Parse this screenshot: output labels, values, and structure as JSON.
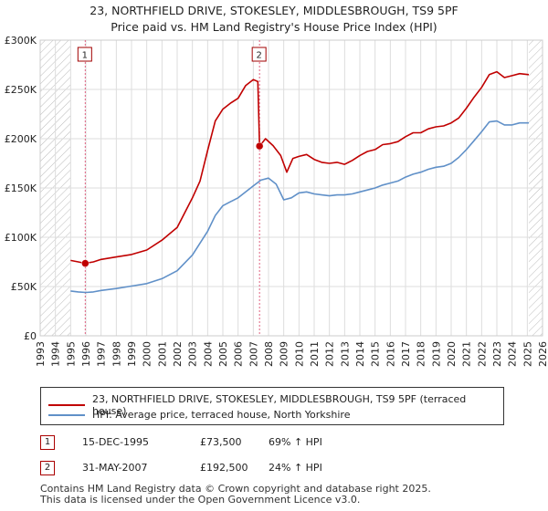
{
  "title": "23, NORTHFIELD DRIVE, STOKESLEY, MIDDLESBROUGH, TS9 5PF",
  "subtitle": "Price paid vs. HM Land Registry's House Price Index (HPI)",
  "colors": {
    "property": "#c00000",
    "hpi": "#6090c8",
    "marker": "#d04040",
    "grid": "#dddddd",
    "hatch": "#bbbbbb"
  },
  "chart_data": {
    "type": "line",
    "xlim": [
      1993,
      2026
    ],
    "ylim": [
      0,
      300000
    ],
    "y_ticks": [
      0,
      50000,
      100000,
      150000,
      200000,
      250000,
      300000
    ],
    "y_tick_labels": [
      "£0",
      "£50K",
      "£100K",
      "£150K",
      "£200K",
      "£250K",
      "£300K"
    ],
    "x_ticks": [
      1993,
      1994,
      1995,
      1996,
      1997,
      1998,
      1999,
      2000,
      2001,
      2002,
      2003,
      2004,
      2005,
      2006,
      2007,
      2008,
      2009,
      2010,
      2011,
      2012,
      2013,
      2014,
      2015,
      2016,
      2017,
      2018,
      2019,
      2020,
      2021,
      2022,
      2023,
      2024,
      2025,
      2026
    ],
    "hatch_regions": [
      [
        1993,
        1995.0
      ],
      [
        2025.1,
        2026
      ]
    ],
    "series": [
      {
        "name": "23, NORTHFIELD DRIVE, STOKESLEY, MIDDLESBROUGH, TS9 5PF (terraced house)",
        "points": [
          [
            1995.0,
            76500
          ],
          [
            1995.5,
            75000
          ],
          [
            1995.96,
            73500
          ],
          [
            1996.5,
            75000
          ],
          [
            1997,
            77500
          ],
          [
            1998,
            80000
          ],
          [
            1999,
            82500
          ],
          [
            2000,
            87000
          ],
          [
            2001,
            97000
          ],
          [
            2002,
            110000
          ],
          [
            2003,
            140000
          ],
          [
            2003.5,
            157000
          ],
          [
            2004,
            188000
          ],
          [
            2004.5,
            218000
          ],
          [
            2005,
            230000
          ],
          [
            2005.5,
            236000
          ],
          [
            2006,
            241000
          ],
          [
            2006.5,
            254000
          ],
          [
            2007.0,
            260000
          ],
          [
            2007.3,
            258000
          ],
          [
            2007.41,
            192500
          ],
          [
            2007.8,
            200000
          ],
          [
            2008.3,
            193000
          ],
          [
            2008.8,
            183000
          ],
          [
            2009.2,
            166000
          ],
          [
            2009.6,
            180000
          ],
          [
            2010,
            182000
          ],
          [
            2010.5,
            184000
          ],
          [
            2011,
            179000
          ],
          [
            2011.5,
            176000
          ],
          [
            2012,
            175000
          ],
          [
            2012.5,
            176000
          ],
          [
            2013,
            174000
          ],
          [
            2013.5,
            178000
          ],
          [
            2014,
            183000
          ],
          [
            2014.5,
            187000
          ],
          [
            2015,
            189000
          ],
          [
            2015.5,
            194000
          ],
          [
            2016,
            195000
          ],
          [
            2016.5,
            197000
          ],
          [
            2017,
            202000
          ],
          [
            2017.5,
            206000
          ],
          [
            2018,
            206000
          ],
          [
            2018.5,
            210000
          ],
          [
            2019,
            212000
          ],
          [
            2019.5,
            213000
          ],
          [
            2020,
            216000
          ],
          [
            2020.5,
            221000
          ],
          [
            2021,
            231000
          ],
          [
            2021.5,
            242000
          ],
          [
            2022,
            252000
          ],
          [
            2022.5,
            265000
          ],
          [
            2023,
            268000
          ],
          [
            2023.5,
            262000
          ],
          [
            2024,
            264000
          ],
          [
            2024.5,
            266000
          ],
          [
            2025.1,
            265000
          ]
        ]
      },
      {
        "name": "HPI: Average price, terraced house, North Yorkshire",
        "points": [
          [
            1995.0,
            45500
          ],
          [
            1995.5,
            44500
          ],
          [
            1996,
            44000
          ],
          [
            1996.5,
            44500
          ],
          [
            1997,
            46000
          ],
          [
            1998,
            48000
          ],
          [
            1999,
            50500
          ],
          [
            2000,
            53000
          ],
          [
            2001,
            58000
          ],
          [
            2002,
            66000
          ],
          [
            2003,
            82000
          ],
          [
            2004,
            106000
          ],
          [
            2004.5,
            122000
          ],
          [
            2005,
            132000
          ],
          [
            2005.5,
            136000
          ],
          [
            2006,
            140000
          ],
          [
            2006.5,
            146000
          ],
          [
            2007,
            152000
          ],
          [
            2007.5,
            158000
          ],
          [
            2008,
            160000
          ],
          [
            2008.5,
            154000
          ],
          [
            2009,
            138000
          ],
          [
            2009.5,
            140000
          ],
          [
            2010,
            145000
          ],
          [
            2010.5,
            146000
          ],
          [
            2011,
            144000
          ],
          [
            2011.5,
            143000
          ],
          [
            2012,
            142000
          ],
          [
            2012.5,
            143000
          ],
          [
            2013,
            143000
          ],
          [
            2013.5,
            144000
          ],
          [
            2014,
            146000
          ],
          [
            2014.5,
            148000
          ],
          [
            2015,
            150000
          ],
          [
            2015.5,
            153000
          ],
          [
            2016,
            155000
          ],
          [
            2016.5,
            157000
          ],
          [
            2017,
            161000
          ],
          [
            2017.5,
            164000
          ],
          [
            2018,
            166000
          ],
          [
            2018.5,
            169000
          ],
          [
            2019,
            171000
          ],
          [
            2019.5,
            172000
          ],
          [
            2020,
            175000
          ],
          [
            2020.5,
            181000
          ],
          [
            2021,
            189000
          ],
          [
            2021.5,
            198000
          ],
          [
            2022,
            207000
          ],
          [
            2022.5,
            217000
          ],
          [
            2023,
            218000
          ],
          [
            2023.5,
            214000
          ],
          [
            2024,
            214000
          ],
          [
            2024.5,
            216000
          ],
          [
            2025.1,
            216000
          ]
        ]
      }
    ],
    "sale_markers": [
      {
        "label": "1",
        "x": 1995.96,
        "y": 73500
      },
      {
        "label": "2",
        "x": 2007.41,
        "y": 192500
      }
    ]
  },
  "legend": {
    "property": "23, NORTHFIELD DRIVE, STOKESLEY, MIDDLESBROUGH, TS9 5PF (terraced house)",
    "hpi": "HPI: Average price, terraced house, North Yorkshire"
  },
  "sales": [
    {
      "num": "1",
      "date": "15-DEC-1995",
      "price": "£73,500",
      "hpi": "69% ↑ HPI"
    },
    {
      "num": "2",
      "date": "31-MAY-2007",
      "price": "£192,500",
      "hpi": "24% ↑ HPI"
    }
  ],
  "footer": {
    "line1": "Contains HM Land Registry data © Crown copyright and database right 2025.",
    "line2": "This data is licensed under the Open Government Licence v3.0."
  }
}
